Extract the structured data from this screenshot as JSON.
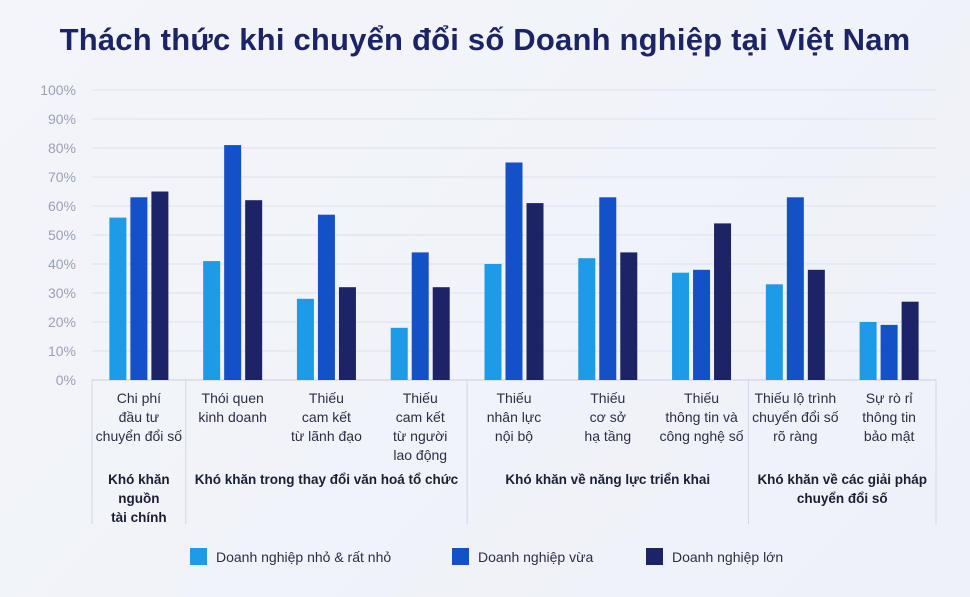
{
  "title": "Thách thức khi chuyển đổi số Doanh nghiệp tại Việt Nam",
  "legend": [
    {
      "label": "Doanh nghiệp nhỏ & rất nhỏ",
      "color": "#1d9be6"
    },
    {
      "label": "Doanh nghiệp vừa",
      "color": "#1450c8"
    },
    {
      "label": "Doanh nghiệp lớn",
      "color": "#1c2467"
    }
  ],
  "chart_data": {
    "type": "bar",
    "title": "Thách thức khi chuyển đổi số Doanh nghiệp tại Việt Nam",
    "ylim": [
      0,
      100
    ],
    "yticks": [
      "0%",
      "10%",
      "20%",
      "30%",
      "40%",
      "50%",
      "60%",
      "70%",
      "80%",
      "90%",
      "100%"
    ],
    "grid": true,
    "legend_position": "bottom",
    "categories": [
      [
        "Chi phí",
        "đầu tư",
        "chuyển đổi số"
      ],
      [
        "Thói quen",
        "kinh doanh"
      ],
      [
        "Thiếu",
        "cam kết",
        "từ lãnh đạo"
      ],
      [
        "Thiếu",
        "cam kết",
        "từ người",
        "lao động"
      ],
      [
        "Thiếu",
        "nhân lực",
        "nội bộ"
      ],
      [
        "Thiếu",
        "cơ sở",
        "hạ tầng"
      ],
      [
        "Thiếu",
        "thông tin và",
        "công nghệ số"
      ],
      [
        "Thiếu lộ trình",
        "chuyển đổi số",
        "rõ ràng"
      ],
      [
        "Sự rò rỉ",
        "thông tin",
        "bảo mật"
      ]
    ],
    "series": [
      {
        "name": "Doanh nghiệp nhỏ & rất nhỏ",
        "values": [
          56,
          41,
          28,
          18,
          40,
          42,
          37,
          33,
          20
        ]
      },
      {
        "name": "Doanh nghiệp vừa",
        "values": [
          63,
          81,
          57,
          44,
          75,
          63,
          38,
          63,
          19
        ]
      },
      {
        "name": "Doanh nghiệp lớn",
        "values": [
          65,
          62,
          32,
          32,
          61,
          44,
          54,
          38,
          27
        ]
      }
    ],
    "groups": [
      {
        "label": [
          "Khó khăn",
          "nguồn",
          "tài chính"
        ],
        "start": 0,
        "end": 0
      },
      {
        "label": [
          "Khó khăn trong thay đổi văn hoá tổ chức"
        ],
        "start": 1,
        "end": 3
      },
      {
        "label": [
          "Khó khăn về năng lực triển khai"
        ],
        "start": 4,
        "end": 6
      },
      {
        "label": [
          "Khó khăn về các giải pháp",
          "chuyển đổi số"
        ],
        "start": 7,
        "end": 8
      }
    ]
  }
}
